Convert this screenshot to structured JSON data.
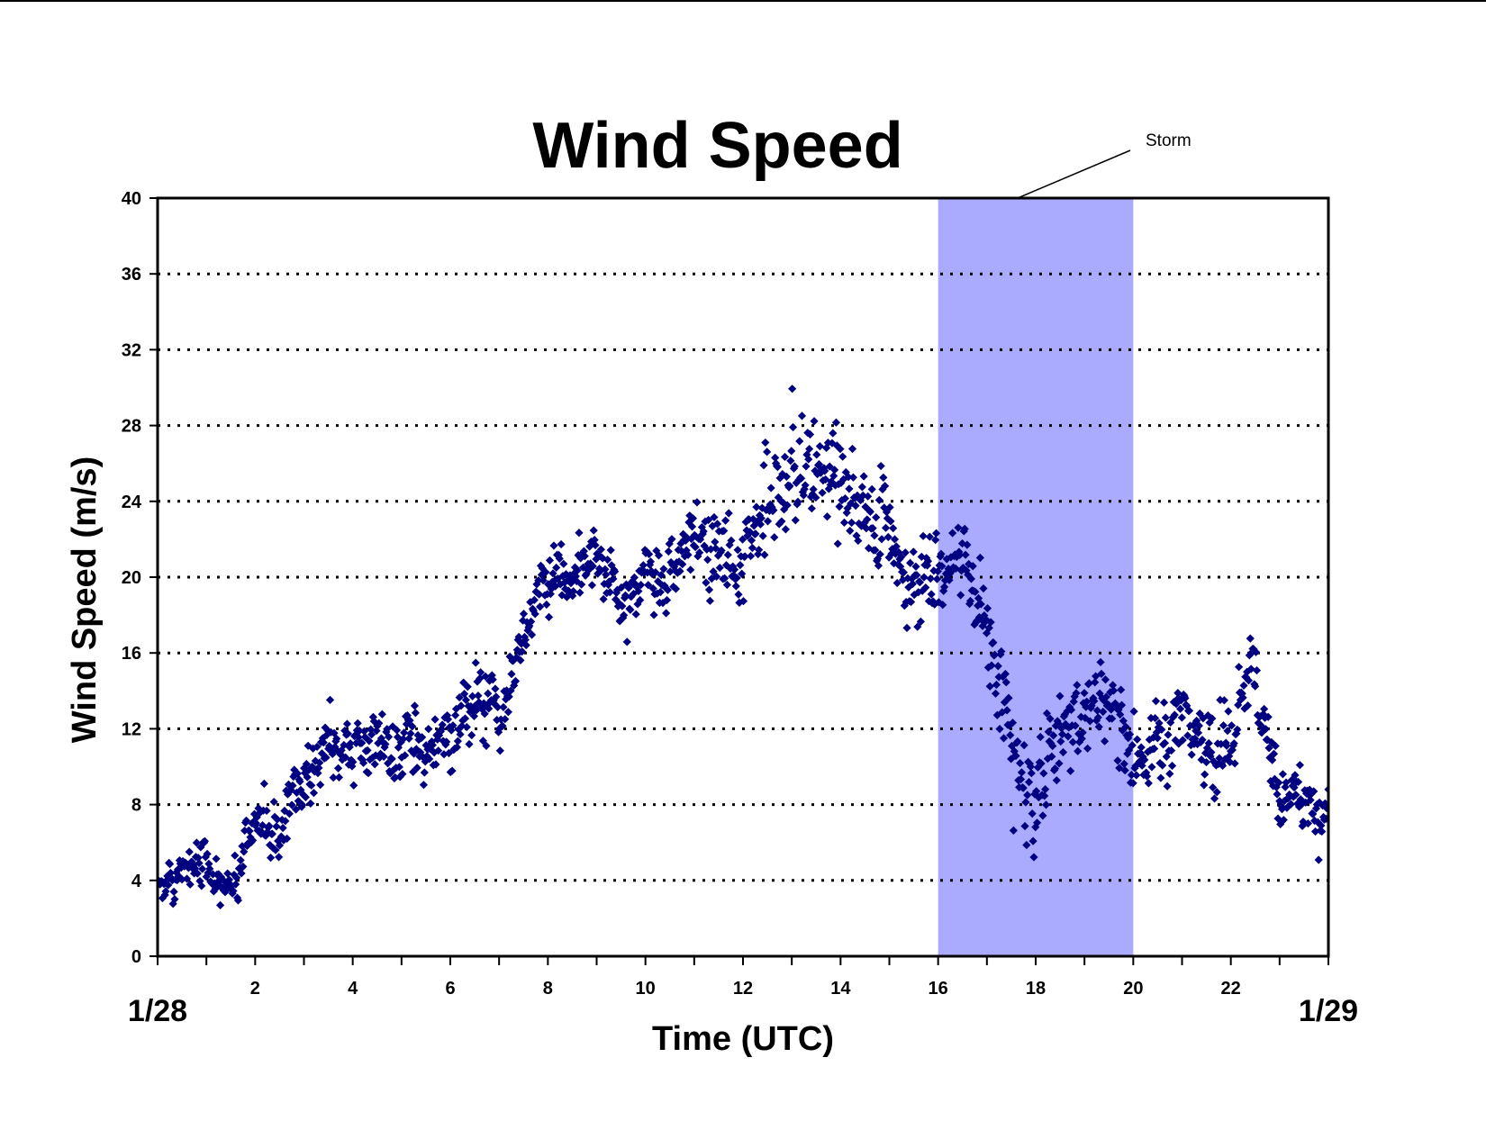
{
  "chart_data": {
    "type": "scatter",
    "title": "Wind Speed",
    "xlabel": "Time (UTC)",
    "ylabel": "Wind Speed (m/s)",
    "xlim": [
      0,
      24
    ],
    "ylim": [
      0,
      40
    ],
    "x_ticks": [
      0,
      2,
      4,
      6,
      8,
      10,
      12,
      14,
      16,
      18,
      20,
      22,
      24
    ],
    "x_tick_labels": [
      "2",
      "4",
      "6",
      "8",
      "10",
      "12",
      "14",
      "16",
      "18",
      "20",
      "22"
    ],
    "y_ticks": [
      0,
      4,
      8,
      12,
      16,
      20,
      24,
      28,
      32,
      36,
      40
    ],
    "x_start_label": "1/28",
    "x_end_label": "1/29",
    "grid": "horizontal dotted",
    "marker": "diamond",
    "marker_color": "#000080",
    "highlight": {
      "label": "Storm",
      "x_range": [
        16,
        20
      ],
      "color": "#aaaaff"
    },
    "series": [
      {
        "trend": [
          [
            0.0,
            4.0
          ],
          [
            0.5,
            4.5
          ],
          [
            1.0,
            4.8
          ],
          [
            1.5,
            5.0
          ],
          [
            2.0,
            8.0
          ],
          [
            2.5,
            6.5
          ],
          [
            3.0,
            9.5
          ],
          [
            3.5,
            11.5
          ],
          [
            4.0,
            11.0
          ],
          [
            4.5,
            11.5
          ],
          [
            5.0,
            10.5
          ],
          [
            5.5,
            10.8
          ],
          [
            6.0,
            12.0
          ],
          [
            6.5,
            14.0
          ],
          [
            7.0,
            13.0
          ],
          [
            7.5,
            16.5
          ],
          [
            8.0,
            19.5
          ],
          [
            8.5,
            20.5
          ],
          [
            9.0,
            21.0
          ],
          [
            9.5,
            19.0
          ],
          [
            10.0,
            20.0
          ],
          [
            10.5,
            20.0
          ],
          [
            11.0,
            22.0
          ],
          [
            11.5,
            21.5
          ],
          [
            12.0,
            21.0
          ],
          [
            12.5,
            24.0
          ],
          [
            13.0,
            26.0
          ],
          [
            13.5,
            25.5
          ],
          [
            14.0,
            25.5
          ],
          [
            14.5,
            23.0
          ],
          [
            15.0,
            21.5
          ],
          [
            15.5,
            19.5
          ],
          [
            16.0,
            20.5
          ],
          [
            16.5,
            21.0
          ],
          [
            17.0,
            18.0
          ],
          [
            17.5,
            11.0
          ],
          [
            18.0,
            9.0
          ],
          [
            18.5,
            11.5
          ],
          [
            19.0,
            12.5
          ],
          [
            19.5,
            14.5
          ],
          [
            20.0,
            11.0
          ],
          [
            20.5,
            11.0
          ],
          [
            21.0,
            11.5
          ],
          [
            21.5,
            10.5
          ],
          [
            22.0,
            12.0
          ],
          [
            22.5,
            13.5
          ],
          [
            23.0,
            9.0
          ],
          [
            23.5,
            8.0
          ],
          [
            24.0,
            8.0
          ]
        ],
        "spread": [
          [
            0,
            1.2
          ],
          [
            2,
            2.0
          ],
          [
            4,
            3.0
          ],
          [
            6,
            3.0
          ],
          [
            8,
            2.5
          ],
          [
            10,
            2.5
          ],
          [
            12,
            3.5
          ],
          [
            13,
            4.5
          ],
          [
            14,
            4.0
          ],
          [
            16,
            3.0
          ],
          [
            17,
            3.5
          ],
          [
            18,
            4.0
          ],
          [
            20,
            3.5
          ],
          [
            22,
            3.0
          ],
          [
            24,
            2.5
          ]
        ],
        "sample_count": 1440
      }
    ]
  }
}
